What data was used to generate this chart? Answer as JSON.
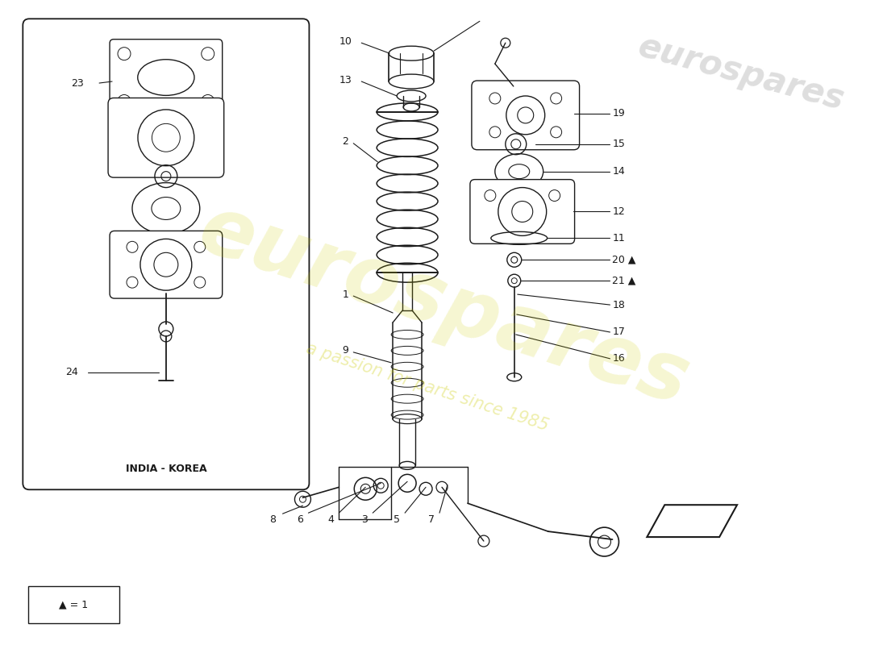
{
  "bg_color": "#ffffff",
  "line_color": "#1a1a1a",
  "watermark1": "eurospares",
  "watermark2": "a passion for parts since 1985",
  "wm_color": "#cccc00",
  "india_korea": "INDIA - KOREA",
  "triangle_note": "▲ = 1"
}
